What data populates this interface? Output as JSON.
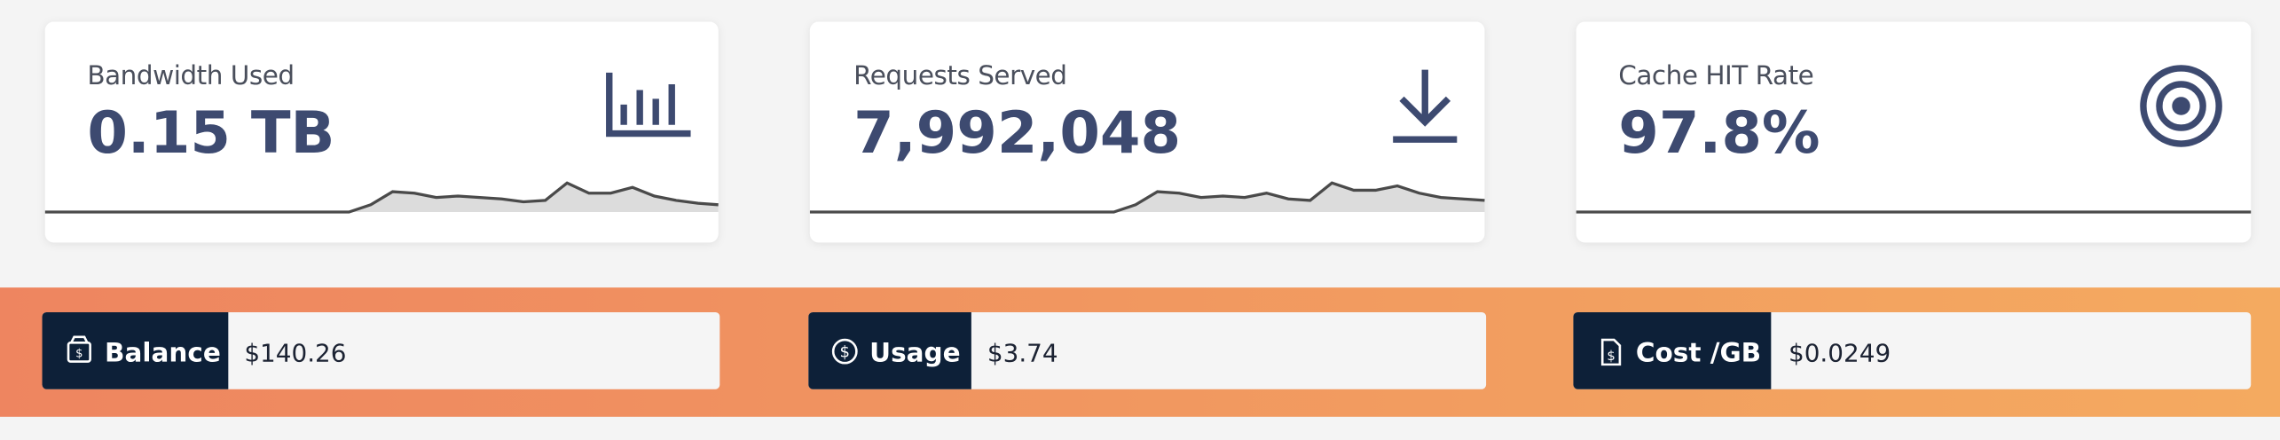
{
  "cards": [
    {
      "label": "Bandwidth Used",
      "value": "0.15 TB"
    },
    {
      "label": "Requests Served",
      "value": "7,992,048"
    },
    {
      "label": "Cache HIT Rate",
      "value": "97.8%"
    }
  ],
  "billing": [
    {
      "label": "Balance",
      "value": "$140.26"
    },
    {
      "label": "Usage",
      "value": "$3.74"
    },
    {
      "label": "Cost /GB",
      "value": "$0.0249"
    }
  ]
}
